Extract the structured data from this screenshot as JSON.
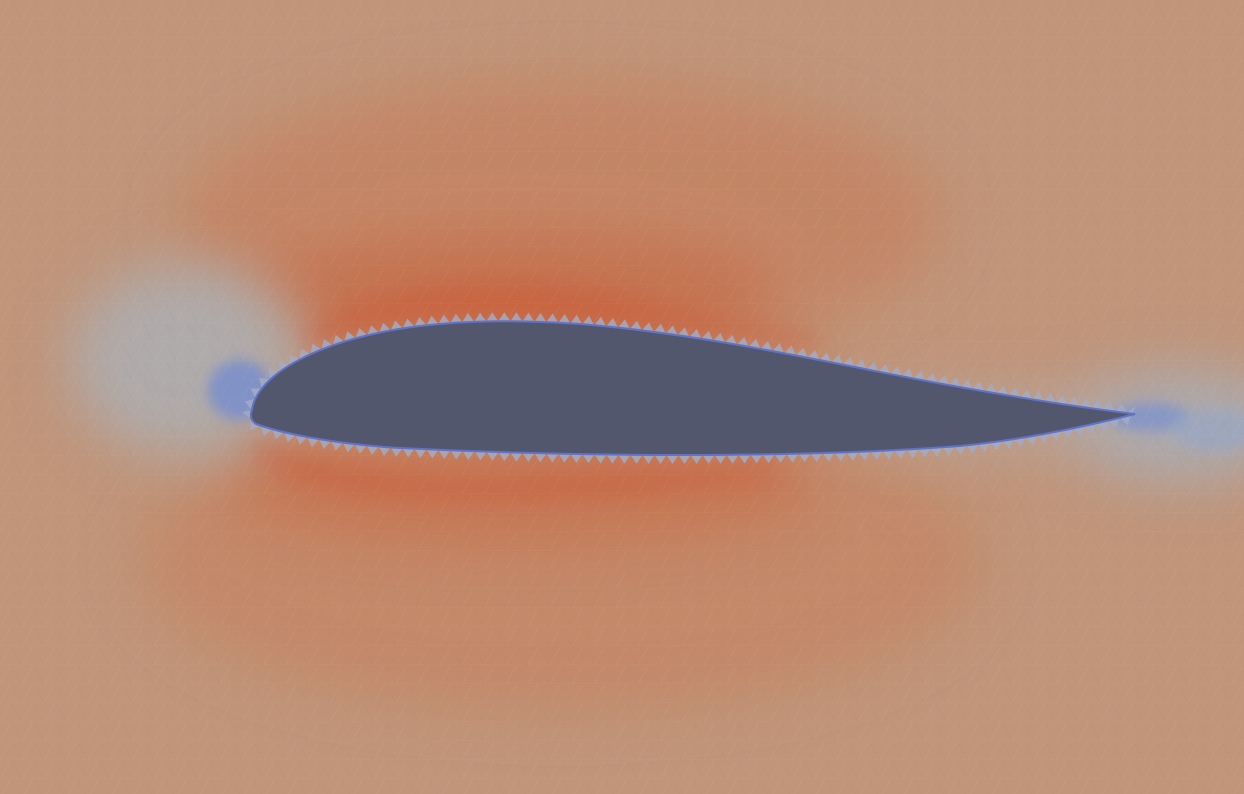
{
  "scene": {
    "description_visible_text": "",
    "colors": {
      "far_field": "#c0957a",
      "high": "#c4714f",
      "peak": "#c9623f",
      "low": "#a8aab2",
      "lowest": "#6a86d6",
      "airfoil": "#53576e",
      "airfoil_edge": "#5f73c8"
    },
    "colormap": "coolwarm",
    "object": "airfoil-cross-section",
    "field": "flow-field-contour",
    "mesh": "triangular"
  }
}
